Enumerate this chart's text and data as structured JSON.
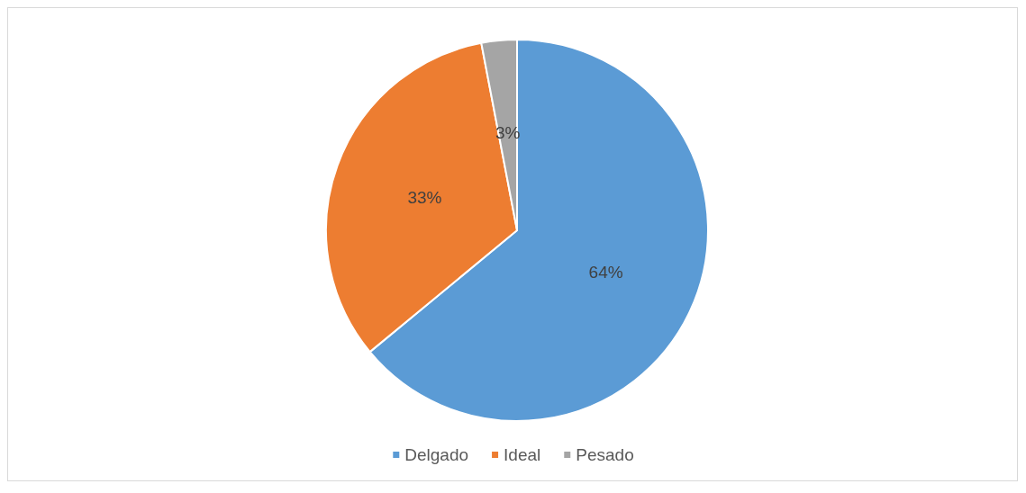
{
  "chart_data": {
    "type": "pie",
    "categories": [
      "Delgado",
      "Ideal",
      "Pesado"
    ],
    "values": [
      64,
      33,
      3
    ],
    "colors": [
      "#5b9bd5",
      "#ed7d31",
      "#a5a5a5"
    ],
    "value_labels": [
      "64%",
      "33%",
      "3%"
    ],
    "legend": "bottom"
  }
}
